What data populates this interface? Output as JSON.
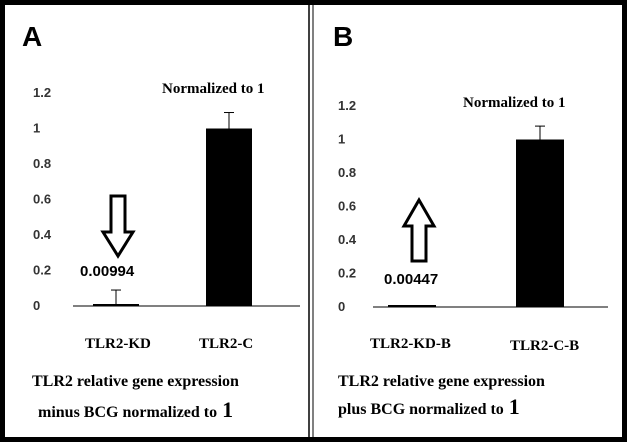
{
  "chart_data": [
    {
      "type": "bar",
      "panel": "A",
      "categories": [
        "TLR2-KD",
        "TLR2-C"
      ],
      "values": [
        0.00994,
        1.0
      ],
      "errors": [
        0.08,
        0.09
      ],
      "data_labels": [
        "0.00994",
        ""
      ],
      "annotation": "Normalized to 1",
      "arrow": "down",
      "yticks": [
        "1.2",
        "1",
        "0.8",
        "0.6",
        "0.4",
        "0.2",
        "0"
      ],
      "ylim": [
        0,
        1.2
      ],
      "caption_line1": "TLR2 relative gene expression",
      "caption_line2": "minus BCG normalized to",
      "caption_num": "1",
      "bar_color": "#000000"
    },
    {
      "type": "bar",
      "panel": "B",
      "categories": [
        "TLR2-KD-B",
        "TLR2-C-B"
      ],
      "values": [
        0.00447,
        1.0
      ],
      "errors": [
        0.0,
        0.08
      ],
      "data_labels": [
        "0.00447",
        ""
      ],
      "annotation": "Normalized to 1",
      "arrow": "up",
      "yticks": [
        "1.2",
        "1",
        "0.8",
        "0.6",
        "0.4",
        "0.2",
        "0"
      ],
      "ylim": [
        0,
        1.2
      ],
      "caption_line1": "TLR2 relative gene expression",
      "caption_line2": "plus BCG normalized to",
      "caption_num": "1",
      "bar_color": "#000000"
    }
  ]
}
